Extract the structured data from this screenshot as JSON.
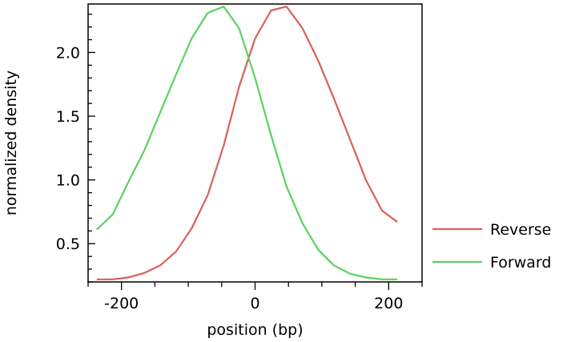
{
  "chart_data": {
    "type": "line",
    "title": "",
    "xlabel": "position (bp)",
    "ylabel": "normalized density",
    "xlim": [
      -250,
      250
    ],
    "ylim": [
      0.2,
      2.38
    ],
    "xticks": [
      -200,
      0,
      200
    ],
    "xtick_labels": [
      "-200",
      "0",
      "200"
    ],
    "yticks": [
      0.5,
      1.0,
      1.5,
      2.0
    ],
    "ytick_labels": [
      "0.5",
      "1.0",
      "1.5",
      "2.0"
    ],
    "legend_position": "right",
    "series": [
      {
        "name": "Reverse",
        "color": "#d9605b",
        "x": [
          -237,
          -213,
          -190,
          -166,
          -142,
          -118,
          -95,
          -71,
          -47,
          -24,
          0,
          24,
          47,
          71,
          95,
          118,
          142,
          166,
          190,
          213
        ],
        "y": [
          0.22,
          0.22,
          0.235,
          0.27,
          0.33,
          0.44,
          0.62,
          0.88,
          1.27,
          1.73,
          2.11,
          2.33,
          2.36,
          2.19,
          1.93,
          1.64,
          1.32,
          1.0,
          0.76,
          0.67
        ]
      },
      {
        "name": "Forward",
        "color": "#5bd160",
        "x": [
          -237,
          -213,
          -190,
          -166,
          -142,
          -118,
          -95,
          -71,
          -47,
          -24,
          0,
          24,
          47,
          71,
          95,
          118,
          142,
          166,
          190,
          213
        ],
        "y": [
          0.61,
          0.73,
          0.98,
          1.23,
          1.53,
          1.83,
          2.11,
          2.31,
          2.36,
          2.19,
          1.8,
          1.35,
          0.95,
          0.66,
          0.45,
          0.33,
          0.265,
          0.235,
          0.22,
          0.22
        ]
      }
    ]
  }
}
